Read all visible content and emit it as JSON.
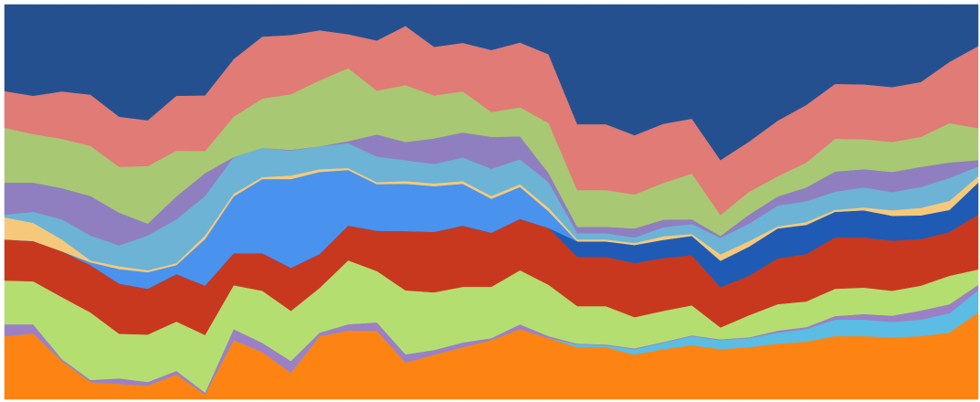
{
  "chart_data": {
    "type": "area",
    "stacked": true,
    "ylim": [
      0,
      100
    ],
    "series": [
      {
        "color": "#fd8412",
        "values": [
          16.0,
          16.7,
          9.7,
          4.4,
          3.9,
          3.5,
          6.3,
          1.2,
          15.0,
          12.0,
          6.7,
          16.0,
          17.4,
          17.4,
          9.3,
          11.3,
          13.2,
          15.0,
          17.8,
          15.5,
          13.2,
          13.2,
          11.3,
          12.7,
          13.7,
          12.7,
          13.2,
          14.1,
          14.6,
          16.0,
          16.0,
          15.7,
          16.0,
          16.9,
          22.0
        ]
      },
      {
        "color": "#5bbce4",
        "values": [
          0,
          0,
          0,
          0,
          0,
          0,
          0,
          0,
          0,
          0,
          0,
          0,
          0,
          0,
          0,
          0,
          0,
          0,
          0,
          0,
          0.7,
          0.5,
          1.4,
          1.6,
          2.3,
          2.3,
          2.3,
          2.8,
          3.2,
          4.2,
          4.2,
          3.9,
          4.2,
          4.9,
          5.6
        ]
      },
      {
        "color": "#9b80c5",
        "values": [
          3.0,
          2.3,
          0.5,
          0.5,
          1.4,
          0.9,
          0.9,
          0.5,
          2.8,
          2.3,
          3.0,
          0.9,
          1.6,
          2.1,
          2.1,
          1.2,
          1.2,
          0.5,
          1.2,
          0.5,
          0.2,
          0.2,
          0.2,
          0.2,
          0.2,
          0.2,
          0.2,
          0.5,
          0.5,
          0.9,
          1.4,
          1.6,
          2.3,
          2.3,
          1.4
        ]
      },
      {
        "color": "#b5de70",
        "values": [
          11.1,
          10.9,
          15.7,
          17.1,
          11.3,
          12.0,
          12.5,
          14.6,
          11.1,
          13.2,
          12.7,
          11.3,
          16.2,
          13.0,
          16.2,
          14.6,
          14.1,
          13.0,
          13.7,
          13.0,
          9.5,
          9.7,
          7.9,
          7.9,
          7.6,
          3.0,
          5.6,
          6.7,
          6.5,
          6.9,
          6.7,
          6.3,
          6.3,
          7.2,
          3.9
        ]
      },
      {
        "color": "#c8381f",
        "values": [
          10.4,
          10.2,
          11.6,
          12.0,
          12.7,
          11.6,
          12.0,
          12.5,
          8.1,
          9.5,
          10.9,
          8.6,
          8.8,
          10.2,
          15.0,
          15.3,
          15.5,
          13.7,
          13.0,
          14.4,
          12.5,
          12.5,
          13.7,
          13.4,
          12.7,
          10.2,
          10.0,
          11.6,
          12.0,
          13.0,
          12.7,
          12.7,
          11.8,
          11.1,
          13.9
        ]
      },
      {
        "color": "#1f5bb5",
        "values": [
          0,
          0,
          0,
          0,
          0,
          0,
          0,
          0,
          0,
          0,
          0,
          0,
          0,
          0,
          0,
          0,
          0,
          0,
          0,
          0,
          3.9,
          3.9,
          4.6,
          4.6,
          4.9,
          6.7,
          7.4,
          7.6,
          7.4,
          6.5,
          6.9,
          6.3,
          6.0,
          5.6,
          8.1
        ]
      },
      {
        "color": "#4993ee",
        "values": [
          0,
          0,
          0,
          0.7,
          3.7,
          4.2,
          2.3,
          11.8,
          14.4,
          18.8,
          22.5,
          20.8,
          14.1,
          11.8,
          12.0,
          11.6,
          10.6,
          8.6,
          8.1,
          4.2,
          0,
          0,
          0,
          0,
          0,
          0,
          0,
          0,
          0,
          0,
          0,
          0,
          0,
          0,
          0
        ]
      },
      {
        "color": "#f6c97a",
        "values": [
          5.6,
          4.6,
          3.0,
          0.5,
          0.7,
          0.5,
          0.5,
          0.9,
          0.7,
          0.5,
          0.9,
          0.7,
          0.5,
          0.5,
          0.7,
          0.7,
          0.7,
          0.7,
          0.7,
          0.9,
          0.5,
          0.5,
          0.5,
          0.9,
          0.5,
          1.6,
          1.4,
          0.5,
          0.7,
          0.5,
          0.7,
          1.4,
          1.9,
          2.3,
          1.6
        ]
      },
      {
        "color": "#6cb3d6",
        "values": [
          0.7,
          2.8,
          5.1,
          6.3,
          5.3,
          8.8,
          11.1,
          10.0,
          9.3,
          7.4,
          6.3,
          5.8,
          6.3,
          6.5,
          5.3,
          4.9,
          6.0,
          6.9,
          6.3,
          6.5,
          1.6,
          1.6,
          1.4,
          2.3,
          2.5,
          4.2,
          4.4,
          5.3,
          5.3,
          4.6,
          5.1,
          4.6,
          5.3,
          5.8,
          2.5
        ]
      },
      {
        "color": "#8f7fc0",
        "values": [
          8.1,
          7.4,
          7.9,
          10.0,
          8.3,
          3.0,
          5.8,
          5.8,
          0,
          0,
          0.2,
          0,
          0.5,
          5.6,
          4.6,
          6.5,
          6.3,
          8.1,
          5.8,
          2.3,
          1.6,
          1.6,
          2.3,
          1.9,
          1.2,
          0.5,
          2.3,
          2.3,
          3.5,
          5.1,
          4.6,
          5.1,
          5.1,
          3.9,
          1.6
        ]
      },
      {
        "color": "#a9c873",
        "values": [
          13.9,
          12.3,
          12.5,
          12.7,
          11.6,
          14.6,
          11.6,
          5.6,
          10.2,
          12.5,
          14.1,
          16.7,
          18.5,
          11.1,
          14.4,
          10.9,
          10.4,
          6.3,
          7.4,
          12.7,
          9.3,
          9.3,
          8.6,
          9.3,
          11.6,
          5.3,
          5.8,
          5.1,
          6.3,
          8.3,
          7.6,
          7.6,
          7.6,
          10.0,
          8.1
        ]
      },
      {
        "color": "#e07b76",
        "values": [
          9.3,
          9.7,
          12.0,
          13.0,
          12.7,
          11.6,
          13.9,
          14.1,
          14.6,
          15.7,
          15.0,
          12.7,
          8.6,
          12.7,
          15.0,
          12.3,
          12.3,
          15.7,
          16.4,
          17.4,
          16.7,
          16.7,
          15.0,
          15.0,
          13.9,
          13.9,
          12.7,
          14.1,
          14.6,
          13.9,
          13.9,
          13.9,
          13.9,
          15.5,
          20.8
        ]
      },
      {
        "color": "#25508f",
        "values": [
          21.9,
          23.1,
          22.0,
          22.8,
          28.4,
          29.3,
          23.1,
          23.0,
          13.8,
          8.1,
          7.7,
          6.5,
          7.5,
          9.1,
          5.4,
          10.7,
          9.7,
          11.5,
          9.6,
          12.6,
          30.3,
          30.3,
          33.1,
          30.2,
          28.9,
          39.4,
          34.7,
          29.4,
          25.4,
          20.1,
          20.2,
          20.9,
          19.6,
          14.5,
          10.5
        ]
      }
    ]
  }
}
